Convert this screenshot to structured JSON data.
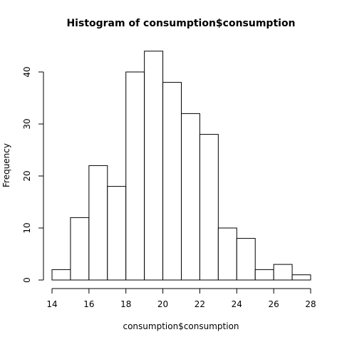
{
  "chart_data": {
    "type": "bar",
    "title": "Histogram of consumption$consumption",
    "xlabel": "consumption$consumption",
    "ylabel": "Frequency",
    "bin_edges": [
      14,
      15,
      16,
      17,
      18,
      19,
      20,
      21,
      22,
      23,
      24,
      25,
      26,
      27,
      28
    ],
    "values": [
      2,
      12,
      22,
      18,
      40,
      44,
      38,
      32,
      28,
      10,
      8,
      2,
      3,
      1
    ],
    "xlim": [
      14,
      28
    ],
    "ylim": [
      0,
      44
    ],
    "x_ticks": [
      "14",
      "16",
      "18",
      "20",
      "22",
      "24",
      "26",
      "28"
    ],
    "y_ticks": [
      "0",
      "10",
      "20",
      "30",
      "40"
    ],
    "grid": false,
    "colors": {
      "bar_fill": "#ffffff",
      "bar_stroke": "#000000"
    }
  }
}
